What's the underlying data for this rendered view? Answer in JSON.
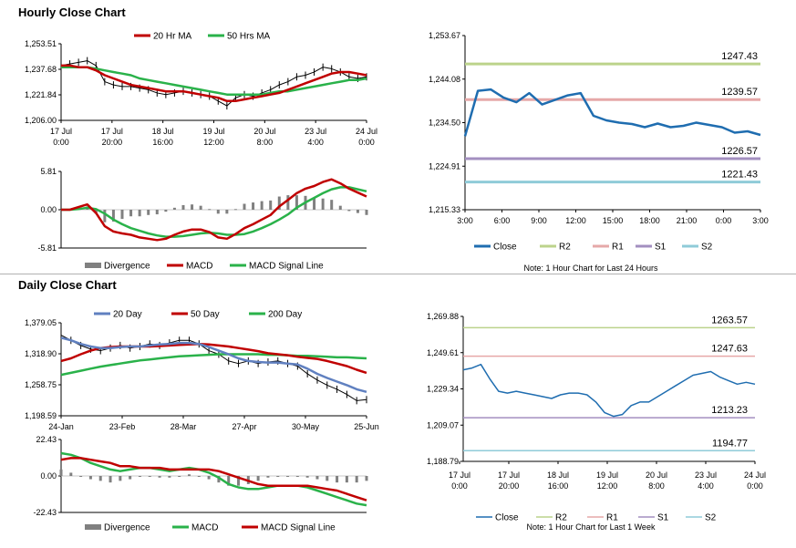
{
  "hourly_title": "Hourly Close Chart",
  "daily_title": "Daily Close Chart",
  "colors": {
    "ma20": "#c00000",
    "ma50": "#2ab24a",
    "day20": "#6080c0",
    "close": "#1f6db0",
    "r2": "#bcd38b",
    "r1": "#e6a8a8",
    "s1": "#a38fc0",
    "s2": "#8fcbd8",
    "div": "#808080",
    "price": "#000000"
  },
  "chart_data": [
    {
      "id": "hourly_price",
      "type": "line",
      "title": "",
      "legend": [
        "20 Hr MA",
        "50 Hrs MA"
      ],
      "ylim": [
        1206.0,
        1253.51
      ],
      "yticks": [
        "1,253.51",
        "1,237.68",
        "1,221.84",
        "1,206.00"
      ],
      "xticks": [
        "17 Jul\n0:00",
        "17 Jul\n20:00",
        "18 Jul\n16:00",
        "19 Jul\n12:00",
        "20 Jul\n8:00",
        "23 Jul\n4:00",
        "24 Jul\n0:00"
      ],
      "series": [
        {
          "name": "Price",
          "values": [
            1240,
            1241,
            1242,
            1243,
            1240,
            1230,
            1228,
            1227,
            1227,
            1226,
            1225,
            1223,
            1222,
            1223,
            1224,
            1223,
            1222,
            1221,
            1218,
            1215,
            1220,
            1222,
            1221,
            1223,
            1225,
            1228,
            1230,
            1233,
            1234,
            1236,
            1239,
            1238,
            1236,
            1233,
            1232,
            1233
          ]
        },
        {
          "name": "20 Hr MA",
          "values": [
            1240,
            1240,
            1239,
            1239,
            1237,
            1234,
            1232,
            1230,
            1228,
            1227,
            1226,
            1225,
            1224,
            1224,
            1224,
            1223,
            1222,
            1221,
            1220,
            1218,
            1218,
            1219,
            1220,
            1221,
            1222,
            1223,
            1225,
            1227,
            1229,
            1231,
            1233,
            1235,
            1236,
            1236,
            1235,
            1234
          ]
        },
        {
          "name": "50 Hrs MA",
          "values": [
            1239,
            1239,
            1239,
            1239,
            1238,
            1237,
            1236,
            1235,
            1234,
            1232,
            1231,
            1230,
            1229,
            1228,
            1227,
            1226,
            1225,
            1224,
            1223,
            1222,
            1222,
            1222,
            1222,
            1222,
            1223,
            1224,
            1224,
            1225,
            1226,
            1227,
            1228,
            1229,
            1230,
            1231,
            1231,
            1232
          ]
        }
      ]
    },
    {
      "id": "hourly_macd",
      "type": "line",
      "legend": [
        "Divergence",
        "MACD",
        "MACD Signal Line"
      ],
      "ylim": [
        -5.81,
        5.81
      ],
      "yticks": [
        "5.81",
        "0.00",
        "-5.81"
      ],
      "series": [
        {
          "name": "MACD",
          "values": [
            0,
            0,
            0.4,
            0.8,
            -0.5,
            -2.5,
            -3.3,
            -3.6,
            -3.8,
            -4.2,
            -4.4,
            -4.6,
            -4.4,
            -3.8,
            -3.3,
            -3.0,
            -3.0,
            -3.4,
            -4.2,
            -4.4,
            -3.7,
            -2.8,
            -2.2,
            -1.5,
            -0.8,
            0.5,
            1.5,
            2.5,
            3.2,
            3.6,
            4.2,
            4.6,
            4.0,
            3.2,
            2.6,
            2.0
          ]
        },
        {
          "name": "MACD Signal Line",
          "values": [
            0,
            0,
            0.1,
            0.3,
            0.1,
            -0.6,
            -1.5,
            -2.2,
            -2.8,
            -3.2,
            -3.6,
            -3.9,
            -4.1,
            -4.1,
            -4.0,
            -3.8,
            -3.6,
            -3.5,
            -3.6,
            -3.8,
            -3.8,
            -3.7,
            -3.3,
            -2.8,
            -2.2,
            -1.5,
            -0.7,
            0.3,
            1.1,
            1.8,
            2.5,
            3.1,
            3.4,
            3.4,
            3.1,
            2.8
          ]
        },
        {
          "name": "Divergence",
          "values": [
            0,
            0,
            0.3,
            0.5,
            -0.6,
            -1.9,
            -1.8,
            -1.4,
            -1.0,
            -1.0,
            -0.8,
            -0.7,
            -0.3,
            0.3,
            0.7,
            0.8,
            0.6,
            0.1,
            -0.6,
            -0.6,
            0.1,
            0.9,
            1.1,
            1.3,
            1.4,
            2.0,
            2.2,
            2.2,
            2.1,
            1.8,
            1.7,
            1.5,
            0.6,
            -0.2,
            -0.5,
            -0.8
          ]
        }
      ]
    },
    {
      "id": "hourly_zoom",
      "type": "line",
      "legend": [
        "Close",
        "R2",
        "R1",
        "S1",
        "S2"
      ],
      "note": "Note: 1 Hour Chart for Last 24 Hours",
      "ylim": [
        1215.33,
        1253.67
      ],
      "yticks": [
        "1,253.67",
        "1,244.08",
        "1,234.50",
        "1,224.91",
        "1,215.33"
      ],
      "xticks": [
        "3:00",
        "6:00",
        "9:00",
        "12:00",
        "15:00",
        "18:00",
        "21:00",
        "0:00",
        "3:00"
      ],
      "levels": [
        {
          "name": "R2",
          "value": 1247.43,
          "label": "1247.43"
        },
        {
          "name": "R1",
          "value": 1239.57,
          "label": "1239.57"
        },
        {
          "name": "S1",
          "value": 1226.57,
          "label": "1226.57"
        },
        {
          "name": "S2",
          "value": 1221.43,
          "label": "1221.43"
        }
      ],
      "series": [
        {
          "name": "Close",
          "values": [
            1231.5,
            1241.5,
            1241.8,
            1240.0,
            1239.0,
            1241.0,
            1238.5,
            1239.5,
            1240.5,
            1241.0,
            1236.0,
            1235.0,
            1234.5,
            1234.2,
            1233.5,
            1234.3,
            1233.5,
            1233.8,
            1234.5,
            1234.0,
            1233.5,
            1232.3,
            1232.6,
            1231.8
          ]
        }
      ]
    },
    {
      "id": "daily_price",
      "type": "line",
      "legend": [
        "20 Day",
        "50 Day",
        "200 Day"
      ],
      "ylim": [
        1198.59,
        1379.05
      ],
      "yticks": [
        "1,379.05",
        "1,318.90",
        "1,258.75",
        "1,198.59"
      ],
      "xticks": [
        "24-Jan",
        "23-Feb",
        "28-Mar",
        "27-Apr",
        "30-May",
        "25-Jun"
      ],
      "series": [
        {
          "name": "Price",
          "values": [
            1355,
            1345,
            1335,
            1328,
            1325,
            1330,
            1335,
            1330,
            1333,
            1338,
            1335,
            1340,
            1345,
            1345,
            1338,
            1325,
            1318,
            1305,
            1300,
            1305,
            1300,
            1303,
            1305,
            1300,
            1295,
            1280,
            1268,
            1258,
            1250,
            1240,
            1228,
            1230
          ]
        },
        {
          "name": "20 Day",
          "values": [
            1350,
            1345,
            1338,
            1333,
            1330,
            1330,
            1332,
            1333,
            1333,
            1335,
            1337,
            1338,
            1340,
            1340,
            1338,
            1332,
            1325,
            1318,
            1310,
            1305,
            1303,
            1302,
            1302,
            1300,
            1298,
            1290,
            1280,
            1272,
            1265,
            1258,
            1250,
            1245
          ]
        },
        {
          "name": "50 Day",
          "values": [
            1305,
            1310,
            1318,
            1325,
            1330,
            1332,
            1333,
            1333,
            1333,
            1333,
            1334,
            1335,
            1336,
            1337,
            1338,
            1337,
            1335,
            1333,
            1330,
            1327,
            1324,
            1320,
            1318,
            1316,
            1313,
            1311,
            1309,
            1305,
            1300,
            1295,
            1288,
            1282
          ]
        },
        {
          "name": "200 Day",
          "values": [
            1278,
            1282,
            1286,
            1290,
            1294,
            1297,
            1300,
            1303,
            1306,
            1308,
            1310,
            1312,
            1314,
            1315,
            1316,
            1317,
            1318,
            1318,
            1318,
            1318,
            1318,
            1317,
            1317,
            1316,
            1315,
            1315,
            1314,
            1313,
            1312,
            1312,
            1311,
            1310
          ]
        }
      ]
    },
    {
      "id": "daily_macd",
      "type": "line",
      "legend": [
        "Divergence",
        "MACD",
        "MACD Signal Line"
      ],
      "ylim": [
        -22.43,
        22.43
      ],
      "yticks": [
        "22.43",
        "0.00",
        "-22.43"
      ],
      "series": [
        {
          "name": "MACD",
          "values": [
            14,
            13,
            11,
            8,
            6,
            4,
            3,
            4,
            5,
            5,
            4,
            3,
            4,
            5,
            4,
            2,
            -1,
            -5,
            -7,
            -8,
            -8,
            -7,
            -6,
            -6,
            -6,
            -7,
            -9,
            -11,
            -13,
            -15,
            -17,
            -18
          ]
        },
        {
          "name": "MACD Signal Line",
          "values": [
            10,
            11,
            11,
            10,
            9,
            8,
            6,
            6,
            5,
            5,
            5,
            4,
            4,
            4,
            4,
            4,
            3,
            1,
            -1,
            -3,
            -5,
            -6,
            -6,
            -6,
            -6,
            -6,
            -7,
            -8,
            -9,
            -11,
            -13,
            -15
          ]
        },
        {
          "name": "Divergence",
          "values": [
            4,
            2,
            0,
            -2,
            -3,
            -4,
            -3,
            -2,
            0,
            0,
            -1,
            -1,
            0,
            1,
            0,
            -2,
            -4,
            -6,
            -6,
            -5,
            -3,
            -1,
            0,
            0,
            0,
            -1,
            -2,
            -3,
            -4,
            -4,
            -4,
            -3
          ]
        }
      ]
    },
    {
      "id": "daily_zoom",
      "type": "line",
      "legend": [
        "Close",
        "R2",
        "R1",
        "S1",
        "S2"
      ],
      "note": "Note: 1 Hour Chart for Last 1 Week",
      "ylim": [
        1188.79,
        1269.88
      ],
      "yticks": [
        "1,269.88",
        "1,249.61",
        "1,229.34",
        "1,209.07",
        "1,188.79"
      ],
      "xticks": [
        "17 Jul\n0:00",
        "17 Jul\n20:00",
        "18 Jul\n16:00",
        "19 Jul\n12:00",
        "20 Jul\n8:00",
        "23 Jul\n4:00",
        "24 Jul\n0:00"
      ],
      "levels": [
        {
          "name": "R2",
          "value": 1263.57,
          "label": "1263.57"
        },
        {
          "name": "R1",
          "value": 1247.63,
          "label": "1247.63"
        },
        {
          "name": "S1",
          "value": 1213.23,
          "label": "1213.23"
        },
        {
          "name": "S2",
          "value": 1194.77,
          "label": "1194.77"
        }
      ],
      "series": [
        {
          "name": "Close",
          "values": [
            1240,
            1241,
            1243,
            1235,
            1228,
            1227,
            1228,
            1227,
            1226,
            1225,
            1224,
            1226,
            1227,
            1227,
            1226,
            1222,
            1216,
            1214,
            1215,
            1220,
            1222,
            1222,
            1225,
            1228,
            1231,
            1234,
            1237,
            1238,
            1239,
            1236,
            1234,
            1232,
            1233,
            1232
          ]
        }
      ]
    }
  ]
}
